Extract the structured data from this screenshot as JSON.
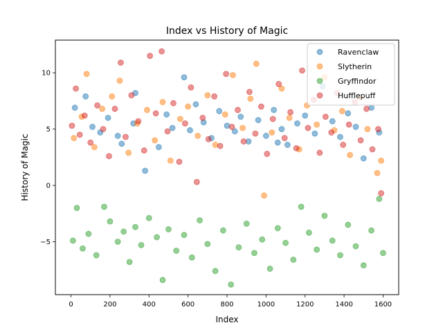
{
  "chart_data": {
    "type": "scatter",
    "title": "Index vs History of Magic",
    "xlabel": "Index",
    "ylabel": "History of Magic",
    "xlim": [
      -80,
      1680
    ],
    "ylim": [
      -9.7,
      12.9
    ],
    "xticks": [
      0,
      200,
      400,
      600,
      800,
      1000,
      1200,
      1400,
      1600
    ],
    "yticks": [
      -5,
      0,
      5,
      10
    ],
    "grid": false,
    "legend_position": "top-right",
    "series": [
      {
        "name": "Ravenclaw",
        "color": "#1f77b4",
        "x": [
          20,
          75,
          110,
          150,
          190,
          240,
          260,
          320,
          330,
          380,
          450,
          490,
          520,
          580,
          610,
          640,
          680,
          720,
          760,
          800,
          840,
          870,
          910,
          960,
          1000,
          1040,
          1080,
          1110,
          1160,
          1200,
          1250,
          1290,
          1340,
          1380,
          1420,
          1460,
          1500,
          1540,
          1580,
          1060
        ],
        "y": [
          6.9,
          7.9,
          5.2,
          4.7,
          6.0,
          4.4,
          3.7,
          5.5,
          8.2,
          1.3,
          3.4,
          6.3,
          5.1,
          9.6,
          4.9,
          7.2,
          5.6,
          4.2,
          6.6,
          5.3,
          4.8,
          6.1,
          3.9,
          5.8,
          4.4,
          6.7,
          5.0,
          3.6,
          5.5,
          6.2,
          4.6,
          8.8,
          5.7,
          4.3,
          6.4,
          5.2,
          2.4,
          6.9,
          4.7,
          3.8
        ]
      },
      {
        "name": "Slytherin",
        "color": "#ff7f0e",
        "x": [
          15,
          55,
          80,
          120,
          160,
          210,
          250,
          295,
          340,
          390,
          430,
          470,
          510,
          560,
          600,
          650,
          700,
          740,
          790,
          830,
          880,
          920,
          950,
          990,
          1030,
          1080,
          1120,
          1170,
          1210,
          1260,
          1300,
          1350,
          1390,
          1430,
          1480,
          1520,
          1570,
          1590
        ],
        "y": [
          4.2,
          6.1,
          9.9,
          3.4,
          6.8,
          7.9,
          9.3,
          2.9,
          5.5,
          6.7,
          4.0,
          7.4,
          2.2,
          5.9,
          7.0,
          4.4,
          8.0,
          3.6,
          6.3,
          9.8,
          5.1,
          7.7,
          10.8,
          -0.9,
          4.7,
          8.6,
          6.0,
          3.2,
          7.1,
          5.4,
          9.6,
          4.9,
          6.6,
          2.7,
          7.8,
          5.0,
          1.1,
          2.2
        ]
      },
      {
        "name": "Gryffindor",
        "color": "#2ca02c",
        "x": [
          10,
          30,
          60,
          90,
          130,
          170,
          200,
          240,
          270,
          300,
          330,
          360,
          400,
          440,
          470,
          500,
          540,
          580,
          620,
          660,
          700,
          740,
          780,
          820,
          860,
          900,
          940,
          980,
          1020,
          1060,
          1100,
          1140,
          1180,
          1220,
          1260,
          1300,
          1340,
          1380,
          1420,
          1460,
          1500,
          1540,
          1580,
          1600
        ],
        "y": [
          -4.9,
          -2.0,
          -5.6,
          -4.3,
          -6.2,
          -1.9,
          -3.2,
          -5.0,
          -4.1,
          -6.8,
          -3.7,
          -5.3,
          -2.9,
          -4.6,
          -8.4,
          -3.9,
          -5.8,
          -4.4,
          -6.4,
          -3.1,
          -5.2,
          -7.6,
          -4.0,
          -8.8,
          -5.5,
          -3.4,
          -6.0,
          -4.8,
          -7.4,
          -3.8,
          -5.1,
          -6.6,
          -1.9,
          -4.2,
          -5.7,
          -2.7,
          -4.9,
          -6.2,
          -3.5,
          -5.4,
          -7.1,
          -4.0,
          -1.2,
          -6.0
        ]
      },
      {
        "name": "Hufflepuff",
        "color": "#d62728",
        "x": [
          5,
          25,
          45,
          70,
          100,
          135,
          165,
          195,
          225,
          255,
          280,
          310,
          345,
          375,
          405,
          435,
          465,
          495,
          525,
          555,
          585,
          615,
          645,
          675,
          705,
          735,
          765,
          795,
          825,
          855,
          885,
          915,
          945,
          975,
          1005,
          1035,
          1065,
          1095,
          1125,
          1155,
          1185,
          1215,
          1245,
          1275,
          1305,
          1335,
          1365,
          1395,
          1425,
          1455,
          1485,
          1515,
          1545,
          1575,
          1590
        ],
        "y": [
          5.3,
          8.6,
          4.5,
          6.2,
          3.8,
          7.1,
          5.0,
          2.6,
          6.8,
          10.9,
          4.3,
          8.0,
          5.7,
          3.1,
          11.5,
          6.4,
          11.9,
          4.8,
          7.3,
          2.1,
          5.5,
          8.7,
          0.3,
          6.0,
          4.1,
          7.9,
          3.5,
          9.9,
          5.2,
          6.7,
          3.9,
          8.3,
          4.6,
          7.0,
          2.8,
          5.9,
          9.0,
          4.2,
          6.5,
          3.3,
          10.2,
          5.1,
          7.6,
          2.9,
          6.1,
          4.7,
          8.2,
          3.6,
          5.4,
          7.4,
          4.0,
          6.8,
          3.2,
          5.0,
          -0.7
        ]
      }
    ]
  }
}
